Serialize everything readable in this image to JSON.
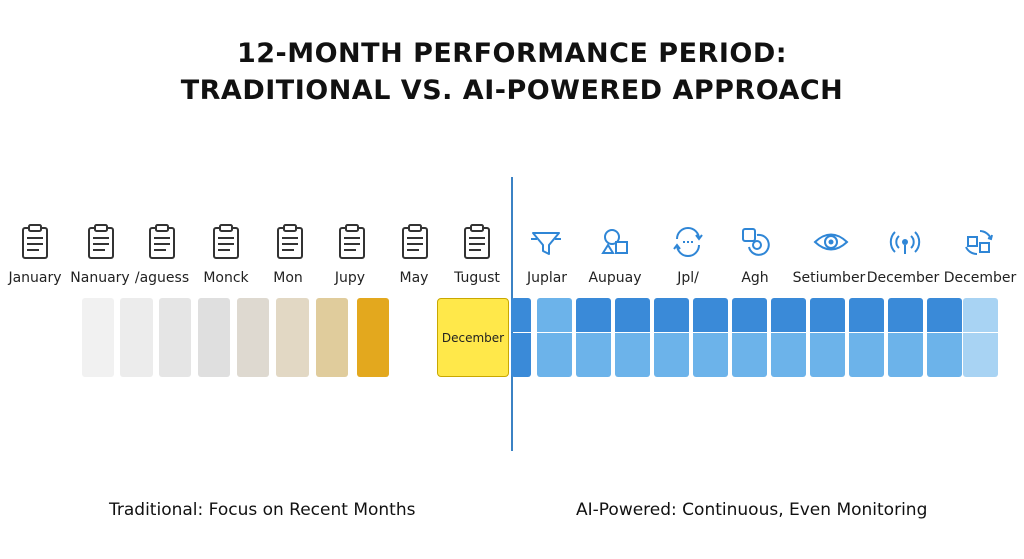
{
  "title": {
    "line1": "12-MONTH PERFORMANCE PERIOD:",
    "line2": "TRADITIONAL VS. AI-POWERED APPROACH"
  },
  "traditional": {
    "icon": "clipboard-icon",
    "months": [
      "January",
      "Nanuary",
      "/aguess",
      "Monck",
      "Mon",
      "Jupy",
      "May",
      "Tugust"
    ],
    "bar_colors": [
      "#f1f1f1",
      "#ececec",
      "#e5e5e5",
      "#dfdfdf",
      "#ded9d0",
      "#e2d8c4",
      "#e0cc9c",
      "#e3a81e"
    ],
    "highlight_label": "December",
    "highlight_color": "#ffe84a",
    "caption": "Traditional: Focus on Recent Months"
  },
  "ai": {
    "months": [
      "Juplar",
      "Aupuay",
      "Jpl/",
      "Agh",
      "Setiumber",
      "December",
      "December"
    ],
    "icons": [
      "funnel-icon",
      "shapes-icon",
      "sync-arrows-icon",
      "gauge-icon",
      "eye-icon",
      "signal-icon",
      "refresh-grid-icon"
    ],
    "color_dark": "#3a8ad8",
    "color_light": "#6cb3ea",
    "color_pale": "#a8d3f3",
    "caption": "AI-Powered: Continuous, Even Monitoring"
  }
}
